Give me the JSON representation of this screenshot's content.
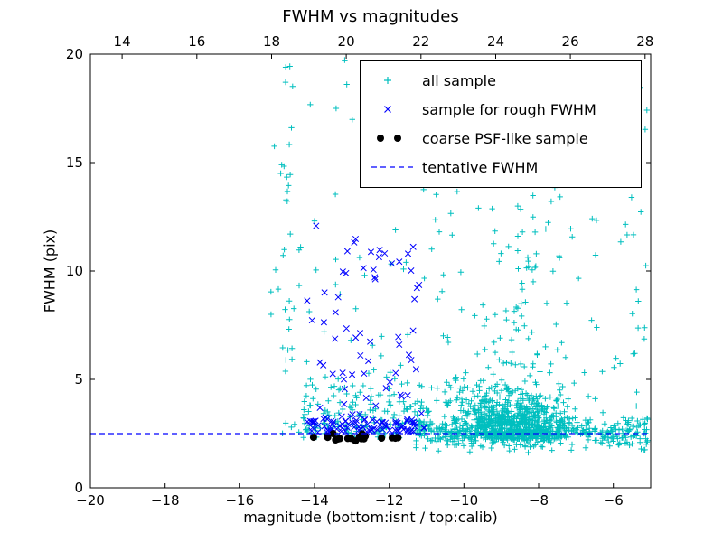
{
  "figure": {
    "title": "FWHM vs magnitudes",
    "xlabel": "magnitude (bottom:isnt / top:calib)",
    "ylabel": "FWHM (pix)"
  },
  "legend": {
    "entries": [
      {
        "label": "all sample",
        "marker": "plus",
        "color": "#00bfbf"
      },
      {
        "label": "sample for rough FWHM",
        "marker": "cross",
        "color": "#0000ff"
      },
      {
        "label": "coarse PSF-like sample",
        "marker": "dot",
        "color": "#000000"
      },
      {
        "label": "tentative FWHM",
        "marker": "dashed-line",
        "color": "#0000ff"
      }
    ]
  },
  "chart_data": {
    "type": "scatter",
    "title": "FWHM vs magnitudes",
    "xlabel": "magnitude (bottom:isnt / top:calib)",
    "ylabel": "FWHM (pix)",
    "x_axis_bottom": {
      "name": "isnt",
      "range": [
        -20,
        -5
      ],
      "ticks": [
        -20,
        -18,
        -16,
        -14,
        -12,
        -10,
        -8,
        -6
      ]
    },
    "x_axis_top": {
      "name": "calib",
      "range": [
        13.15,
        28.15
      ],
      "ticks": [
        14,
        16,
        18,
        20,
        22,
        24,
        26,
        28
      ]
    },
    "y_axis": {
      "range": [
        0,
        20
      ],
      "ticks": [
        0,
        5,
        10,
        15,
        20
      ]
    },
    "grid": false,
    "legend_position": "upper-right",
    "tentative_fwhm_line": {
      "name": "tentative FWHM",
      "y": 2.5,
      "color": "#0000ff",
      "style": "dashed"
    },
    "seed": 20240817,
    "series": [
      {
        "name": "all sample",
        "marker": "plus",
        "color": "#00bfbf",
        "clusters": [
          {
            "count": 750,
            "x": {
              "dist": "normal",
              "mu": -8.75,
              "sigma": 0.85,
              "clipMin": -11.3,
              "clipMax": -6.3
            },
            "y": {
              "dist": "halfnormal",
              "base": 2.25,
              "sigma": 1.0,
              "clipMax": 8
            }
          },
          {
            "count": 120,
            "x": {
              "dist": "normal",
              "mu": -8.7,
              "sigma": 0.9,
              "clipMin": -11.0,
              "clipMax": -6.4
            },
            "y": {
              "dist": "power",
              "min": 4,
              "max": 19.8,
              "exp": 2.0
            }
          },
          {
            "count": 330,
            "x": {
              "dist": "uniform",
              "min": -11.3,
              "max": -5.05
            },
            "y": {
              "dist": "normal",
              "mu": 2.45,
              "sigma": 0.35,
              "clipMin": 1.6,
              "clipMax": 3.8
            }
          },
          {
            "count": 230,
            "x": {
              "dist": "power",
              "min": -5.05,
              "max": -15.2,
              "exp": 1.4
            },
            "y": {
              "dist": "power",
              "min": 2.5,
              "max": 19.8,
              "exp": 2.2
            }
          },
          {
            "count": 150,
            "x": {
              "dist": "uniform",
              "min": -14.35,
              "max": -10.9
            },
            "y": {
              "dist": "halfnormal",
              "base": 2.3,
              "sigma": 1.7,
              "clipMax": 13.5
            }
          },
          {
            "count": 26,
            "x": {
              "dist": "normal",
              "mu": -14.75,
              "sigma": 0.12
            },
            "y": {
              "dist": "uniform",
              "min": 6,
              "max": 19.6
            }
          }
        ]
      },
      {
        "name": "sample for rough FWHM",
        "marker": "cross",
        "color": "#0000ff",
        "clusters": [
          {
            "count": 80,
            "x": {
              "dist": "uniform",
              "min": -14.25,
              "max": -11.05
            },
            "y": {
              "dist": "halfnormal",
              "base": 2.55,
              "sigma": 0.45,
              "clipMax": 4.5
            }
          },
          {
            "count": 70,
            "x": {
              "dist": "uniform",
              "min": -14.2,
              "max": -11.1
            },
            "y": {
              "dist": "power",
              "min": 3,
              "max": 12.2,
              "exp": 1.9
            }
          }
        ]
      },
      {
        "name": "coarse PSF-like sample",
        "marker": "dot",
        "color": "#000000",
        "clusters": [
          {
            "count": 26,
            "x": {
              "dist": "uniform",
              "min": -14.05,
              "max": -11.55
            },
            "y": {
              "dist": "normal",
              "mu": 2.32,
              "sigma": 0.07
            }
          }
        ]
      }
    ]
  }
}
